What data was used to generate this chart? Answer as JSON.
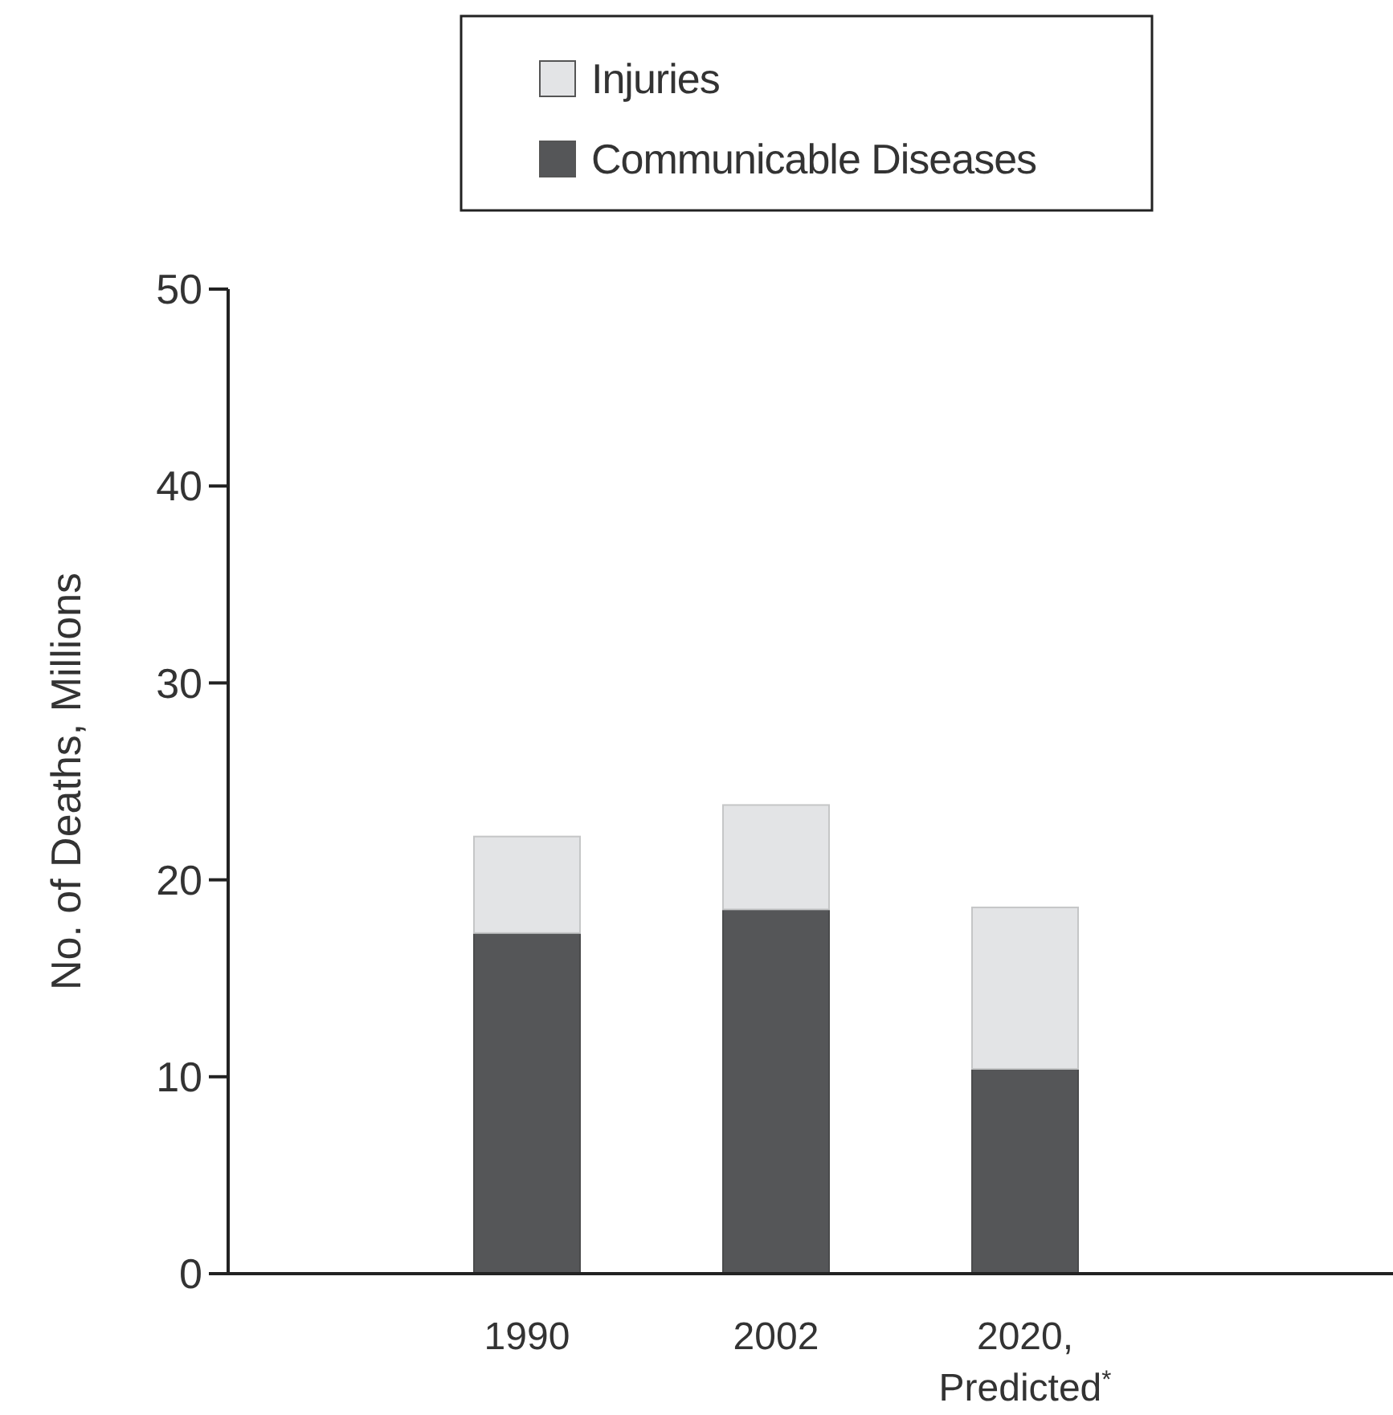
{
  "chart_data": {
    "type": "bar",
    "stacked": true,
    "ylabel": "No. of Deaths, Millions",
    "categories": [
      "1990",
      "2002",
      "2020,\nPredicted$^{*}$"
    ],
    "series": [
      {
        "name": "Communicable Diseases",
        "color": "#555658",
        "values": [
          17.3,
          18.5,
          10.4
        ]
      },
      {
        "name": "Injuries",
        "color": "#e3e4e6",
        "values": [
          4.9,
          5.3,
          8.2
        ]
      }
    ],
    "ylim": [
      0,
      50
    ],
    "yticks": [
      0,
      10,
      20,
      30,
      40,
      50
    ],
    "grid": false,
    "legend": "top"
  }
}
